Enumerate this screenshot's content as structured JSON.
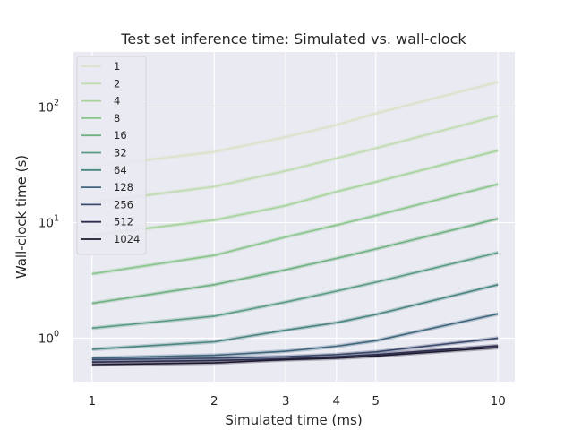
{
  "chart_data": {
    "type": "line",
    "title": "Test set inference time: Simulated vs. wall-clock",
    "xlabel": "Simulated time (ms)",
    "ylabel": "Wall-clock time (s)",
    "xscale": "log",
    "yscale": "log",
    "xlim": [
      0.9,
      11
    ],
    "ylim": [
      0.42,
      300
    ],
    "x": [
      1,
      2,
      3,
      4,
      5,
      10
    ],
    "xticks": [
      1,
      2,
      3,
      4,
      5,
      10
    ],
    "xtick_labels": [
      "1",
      "2",
      "3",
      "4",
      "5",
      "10"
    ],
    "yticks": [
      1,
      10,
      100
    ],
    "ytick_labels": [
      "10",
      "10",
      "10"
    ],
    "ytick_exponents": [
      "0",
      "1",
      "2"
    ],
    "grid": true,
    "legend_position": "top-left",
    "series": [
      {
        "name": "1",
        "color": "#dbe2c8",
        "values": [
          30.5,
          41,
          55,
          70,
          88,
          165
        ]
      },
      {
        "name": "2",
        "color": "#c0dcaf",
        "values": [
          15,
          20.5,
          28,
          36,
          44,
          84
        ]
      },
      {
        "name": "4",
        "color": "#a5d39a",
        "values": [
          7.8,
          10.5,
          14,
          18.5,
          22.5,
          42
        ]
      },
      {
        "name": "8",
        "color": "#89c58a",
        "values": [
          3.6,
          5.2,
          7.5,
          9.5,
          11.5,
          21.5
        ]
      },
      {
        "name": "16",
        "color": "#6fb182",
        "values": [
          2.0,
          2.9,
          3.9,
          4.9,
          5.9,
          10.8
        ]
      },
      {
        "name": "32",
        "color": "#5a9b83",
        "values": [
          1.22,
          1.55,
          2.05,
          2.55,
          3.05,
          5.5
        ]
      },
      {
        "name": "64",
        "color": "#4a8580",
        "values": [
          0.8,
          0.93,
          1.17,
          1.36,
          1.6,
          2.9
        ]
      },
      {
        "name": "128",
        "color": "#40677d",
        "values": [
          0.67,
          0.71,
          0.77,
          0.85,
          0.95,
          1.62
        ]
      },
      {
        "name": "256",
        "color": "#3b4a6c",
        "values": [
          0.65,
          0.67,
          0.69,
          0.72,
          0.76,
          1.0
        ]
      },
      {
        "name": "512",
        "color": "#2c2d4f",
        "values": [
          0.62,
          0.64,
          0.66,
          0.69,
          0.72,
          0.86
        ]
      },
      {
        "name": "1024",
        "color": "#1e1a30",
        "values": [
          0.59,
          0.61,
          0.65,
          0.67,
          0.7,
          0.83
        ]
      }
    ]
  }
}
